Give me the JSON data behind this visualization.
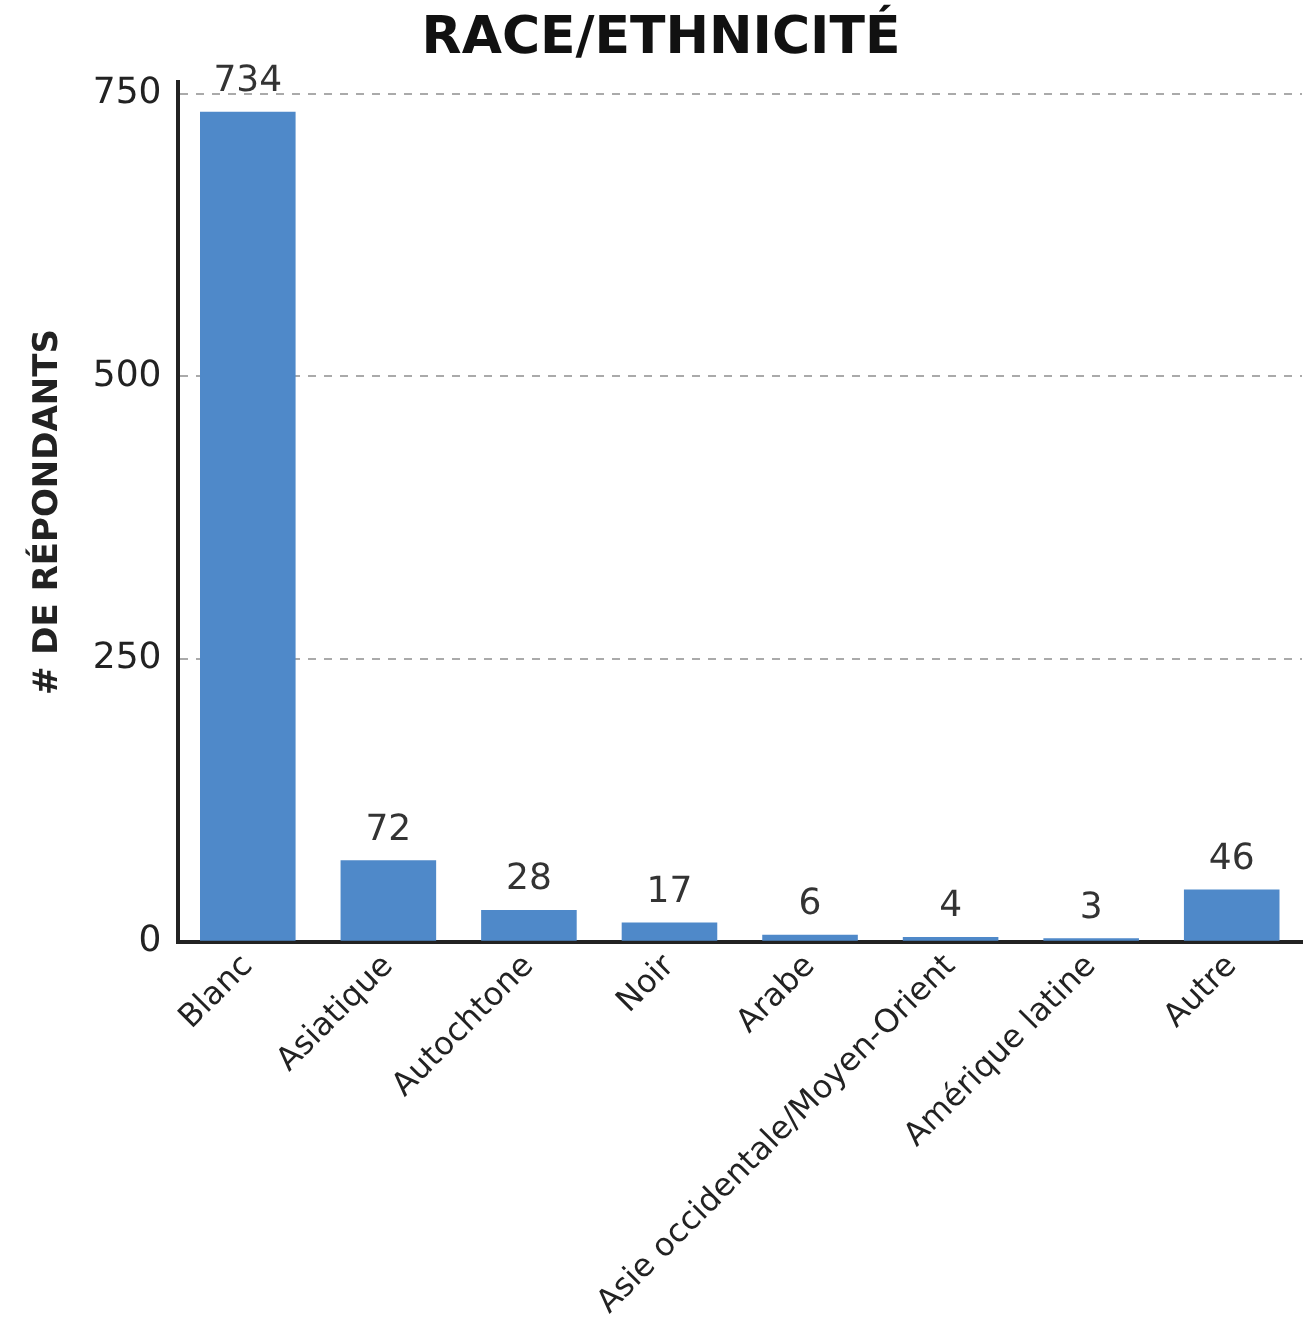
{
  "chart_data": {
    "type": "bar",
    "title": "RACE/ETHNICITÉ",
    "ylabel": "# DE RÉPONDANTS",
    "categories": [
      "Blanc",
      "Asiatique",
      "Autochtone",
      "Noir",
      "Arabe",
      "Asie occidentale/Moyen-Orient",
      "Amérique latine",
      "Autre"
    ],
    "values": [
      734,
      72,
      28,
      17,
      6,
      4,
      3,
      46
    ],
    "color": "#4f89c9",
    "ylim": [
      0,
      760
    ],
    "yticks": [
      0,
      250,
      500,
      750
    ],
    "grid": "y",
    "data_labels": true,
    "legend": false
  }
}
